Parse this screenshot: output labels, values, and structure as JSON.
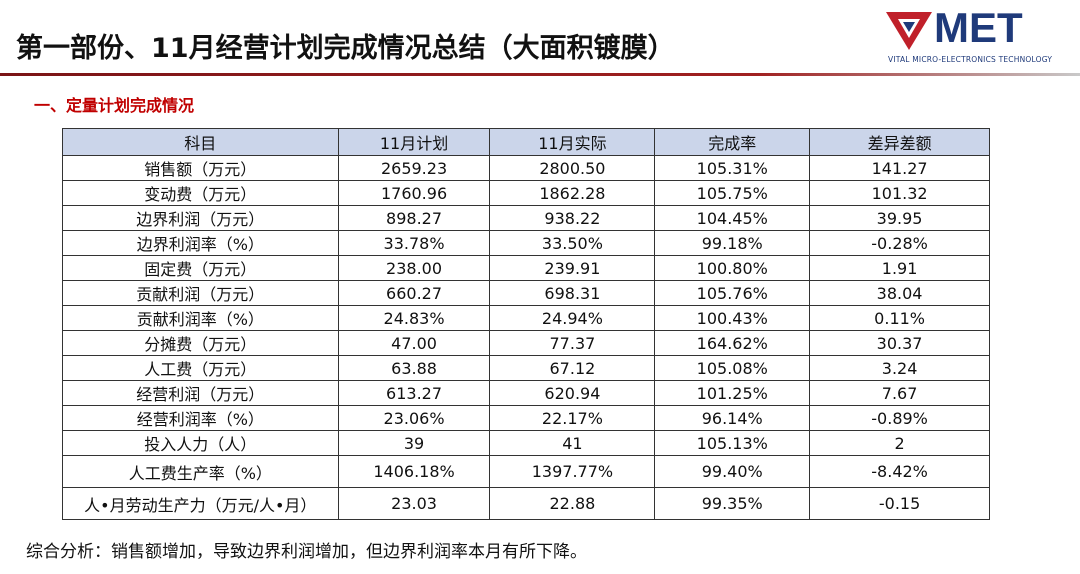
{
  "header": {
    "title": "第一部份、11月经营计划完成情况总结（大面积镀膜）",
    "logo_text": "MET",
    "logo_tagline": "VITAL MICRO-ELECTRONICS TECHNOLOGY"
  },
  "section_title": "一、定量计划完成情况",
  "table": {
    "columns": [
      "科目",
      "11月计划",
      "11月实际",
      "完成率",
      "差异差额"
    ],
    "rows": [
      [
        "销售额（万元）",
        "2659.23",
        "2800.50",
        "105.31%",
        "141.27"
      ],
      [
        "变动费（万元）",
        "1760.96",
        "1862.28",
        "105.75%",
        "101.32"
      ],
      [
        "边界利润（万元）",
        "898.27",
        "938.22",
        "104.45%",
        "39.95"
      ],
      [
        "边界利润率（%）",
        "33.78%",
        "33.50%",
        "99.18%",
        "-0.28%"
      ],
      [
        "固定费（万元）",
        "238.00",
        "239.91",
        "100.80%",
        "1.91"
      ],
      [
        "贡献利润（万元）",
        "660.27",
        "698.31",
        "105.76%",
        "38.04"
      ],
      [
        "贡献利润率（%）",
        "24.83%",
        "24.94%",
        "100.43%",
        "0.11%"
      ],
      [
        "分摊费（万元）",
        "47.00",
        "77.37",
        "164.62%",
        "30.37"
      ],
      [
        "人工费（万元）",
        "63.88",
        "67.12",
        "105.08%",
        "3.24"
      ],
      [
        "经营利润（万元）",
        "613.27",
        "620.94",
        "101.25%",
        "7.67"
      ],
      [
        "经营利润率（%）",
        "23.06%",
        "22.17%",
        "96.14%",
        "-0.89%"
      ],
      [
        "投入人力（人）",
        "39",
        "41",
        "105.13%",
        "2"
      ],
      [
        "人工费生产率（%）",
        "1406.18%",
        "1397.77%",
        "99.40%",
        "-8.42%"
      ],
      [
        "人•月劳动生产力（万元/人•月）",
        "23.03",
        "22.88",
        "99.35%",
        "-0.15"
      ]
    ]
  },
  "summary": "综合分析：销售额增加，导致边界利润增加，但边界利润率本月有所下降。"
}
